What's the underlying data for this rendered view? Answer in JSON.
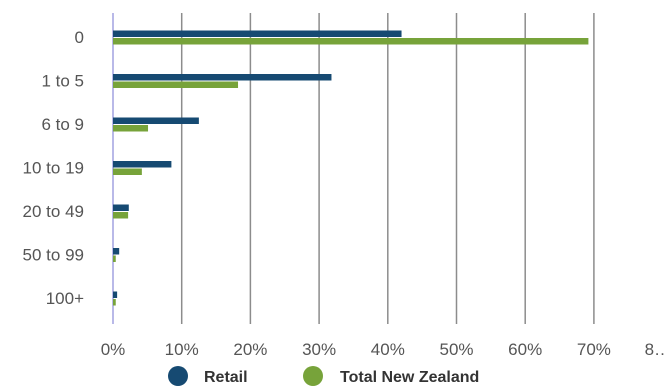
{
  "chart_data": {
    "type": "bar",
    "orientation": "horizontal",
    "categories": [
      "0",
      "1 to 5",
      "6 to 9",
      "10 to 19",
      "20 to 49",
      "50 to 99",
      "100+"
    ],
    "series": [
      {
        "name": "Retail",
        "color": "#164a72",
        "values": [
          42.0,
          31.8,
          12.5,
          8.5,
          2.3,
          0.9,
          0.6
        ]
      },
      {
        "name": "Total New Zealand",
        "color": "#77a33a",
        "values": [
          69.2,
          18.2,
          5.1,
          4.2,
          2.2,
          0.4,
          0.4
        ]
      }
    ],
    "xlim": [
      0,
      80
    ],
    "x_ticks": [
      "0%",
      "10%",
      "20%",
      "30%",
      "40%",
      "50%",
      "60%",
      "70%",
      "8…"
    ],
    "grid": true,
    "legend_position": "bottom",
    "title": "",
    "xlabel": "",
    "ylabel": ""
  }
}
